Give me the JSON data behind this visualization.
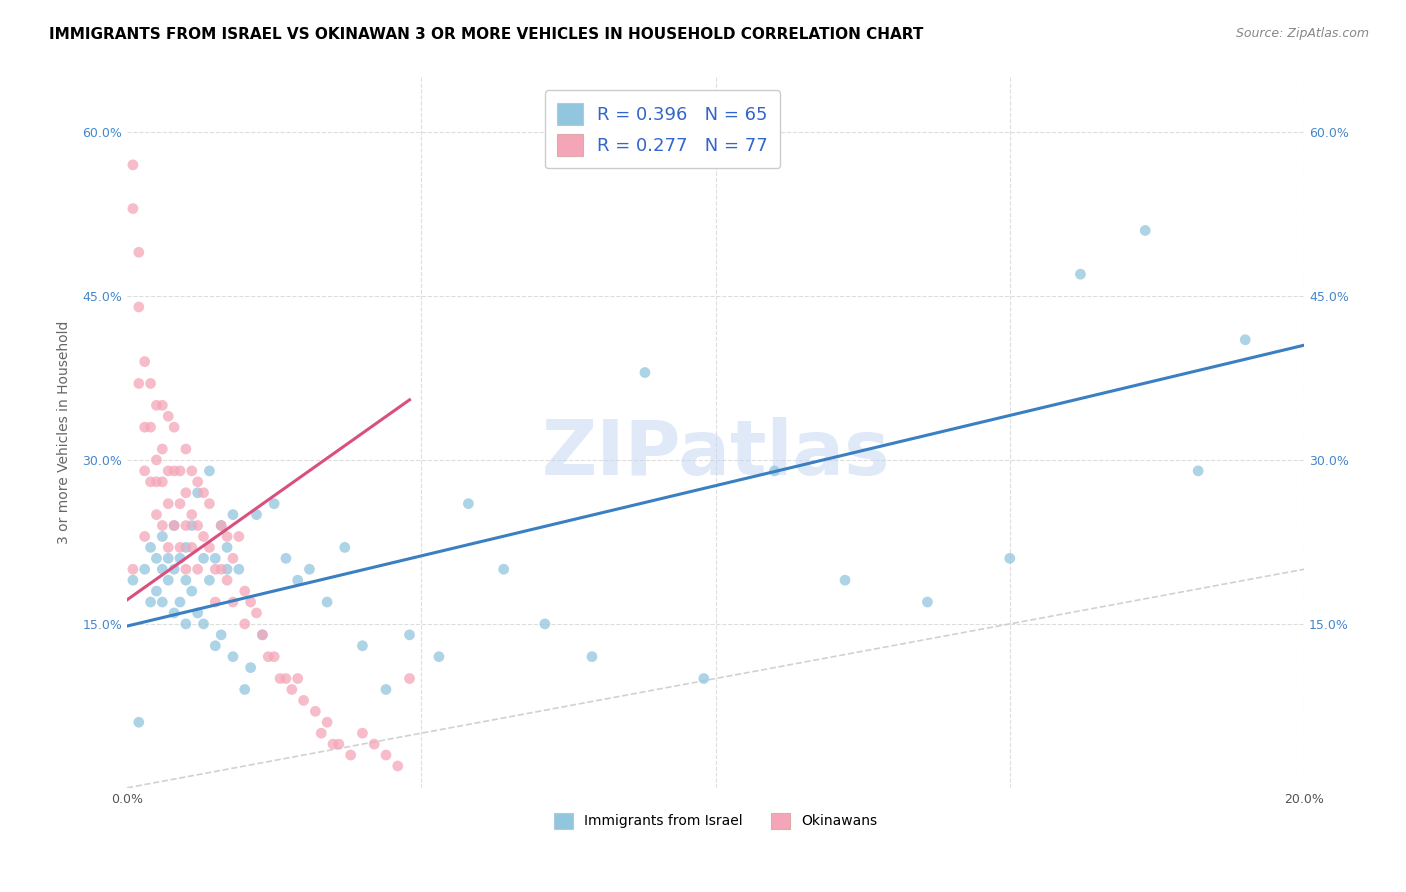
{
  "title": "IMMIGRANTS FROM ISRAEL VS OKINAWAN 3 OR MORE VEHICLES IN HOUSEHOLD CORRELATION CHART",
  "source": "Source: ZipAtlas.com",
  "ylabel": "3 or more Vehicles in Household",
  "xlim": [
    0.0,
    0.2
  ],
  "ylim": [
    0.0,
    0.65
  ],
  "xticks": [
    0.0,
    0.05,
    0.1,
    0.15,
    0.2
  ],
  "xtick_labels": [
    "0.0%",
    "",
    "",
    "",
    "20.0%"
  ],
  "yticks": [
    0.0,
    0.15,
    0.3,
    0.45,
    0.6
  ],
  "ytick_labels": [
    "",
    "15.0%",
    "30.0%",
    "45.0%",
    "60.0%"
  ],
  "R_blue": 0.396,
  "N_blue": 65,
  "R_pink": 0.277,
  "N_pink": 77,
  "blue_color": "#92c5de",
  "pink_color": "#f4a6b8",
  "blue_line_color": "#3a7fc1",
  "pink_line_color": "#d94f7e",
  "diag_line_color": "#cccccc",
  "grid_color": "#dddddd",
  "legend_text_color": "#3366cc",
  "watermark": "ZIPatlas",
  "blue_scatter_x": [
    0.001,
    0.002,
    0.003,
    0.004,
    0.004,
    0.005,
    0.005,
    0.006,
    0.006,
    0.006,
    0.007,
    0.007,
    0.008,
    0.008,
    0.008,
    0.009,
    0.009,
    0.01,
    0.01,
    0.01,
    0.011,
    0.011,
    0.012,
    0.012,
    0.013,
    0.013,
    0.014,
    0.014,
    0.015,
    0.015,
    0.016,
    0.016,
    0.017,
    0.017,
    0.018,
    0.018,
    0.019,
    0.02,
    0.021,
    0.022,
    0.023,
    0.025,
    0.027,
    0.029,
    0.031,
    0.034,
    0.037,
    0.04,
    0.044,
    0.048,
    0.053,
    0.058,
    0.064,
    0.071,
    0.079,
    0.088,
    0.098,
    0.11,
    0.122,
    0.136,
    0.15,
    0.162,
    0.173,
    0.182,
    0.19
  ],
  "blue_scatter_y": [
    0.19,
    0.06,
    0.2,
    0.17,
    0.22,
    0.18,
    0.21,
    0.17,
    0.2,
    0.23,
    0.19,
    0.21,
    0.16,
    0.2,
    0.24,
    0.17,
    0.21,
    0.15,
    0.19,
    0.22,
    0.18,
    0.24,
    0.16,
    0.27,
    0.15,
    0.21,
    0.19,
    0.29,
    0.13,
    0.21,
    0.14,
    0.24,
    0.2,
    0.22,
    0.12,
    0.25,
    0.2,
    0.09,
    0.11,
    0.25,
    0.14,
    0.26,
    0.21,
    0.19,
    0.2,
    0.17,
    0.22,
    0.13,
    0.09,
    0.14,
    0.12,
    0.26,
    0.2,
    0.15,
    0.12,
    0.38,
    0.1,
    0.29,
    0.19,
    0.17,
    0.21,
    0.47,
    0.51,
    0.29,
    0.41
  ],
  "pink_scatter_x": [
    0.001,
    0.001,
    0.001,
    0.002,
    0.002,
    0.002,
    0.003,
    0.003,
    0.003,
    0.003,
    0.004,
    0.004,
    0.004,
    0.005,
    0.005,
    0.005,
    0.005,
    0.006,
    0.006,
    0.006,
    0.006,
    0.007,
    0.007,
    0.007,
    0.007,
    0.008,
    0.008,
    0.008,
    0.009,
    0.009,
    0.009,
    0.01,
    0.01,
    0.01,
    0.01,
    0.011,
    0.011,
    0.011,
    0.012,
    0.012,
    0.012,
    0.013,
    0.013,
    0.014,
    0.014,
    0.015,
    0.015,
    0.016,
    0.016,
    0.017,
    0.017,
    0.018,
    0.018,
    0.019,
    0.02,
    0.02,
    0.021,
    0.022,
    0.023,
    0.024,
    0.025,
    0.026,
    0.027,
    0.028,
    0.029,
    0.03,
    0.032,
    0.033,
    0.034,
    0.035,
    0.036,
    0.038,
    0.04,
    0.042,
    0.044,
    0.046,
    0.048
  ],
  "pink_scatter_y": [
    0.57,
    0.53,
    0.2,
    0.49,
    0.44,
    0.37,
    0.39,
    0.33,
    0.29,
    0.23,
    0.37,
    0.33,
    0.28,
    0.35,
    0.3,
    0.28,
    0.25,
    0.35,
    0.31,
    0.28,
    0.24,
    0.34,
    0.29,
    0.26,
    0.22,
    0.33,
    0.29,
    0.24,
    0.29,
    0.26,
    0.22,
    0.31,
    0.27,
    0.24,
    0.2,
    0.29,
    0.25,
    0.22,
    0.28,
    0.24,
    0.2,
    0.27,
    0.23,
    0.26,
    0.22,
    0.2,
    0.17,
    0.24,
    0.2,
    0.23,
    0.19,
    0.21,
    0.17,
    0.23,
    0.18,
    0.15,
    0.17,
    0.16,
    0.14,
    0.12,
    0.12,
    0.1,
    0.1,
    0.09,
    0.1,
    0.08,
    0.07,
    0.05,
    0.06,
    0.04,
    0.04,
    0.03,
    0.05,
    0.04,
    0.03,
    0.02,
    0.1
  ],
  "blue_line_x": [
    0.0,
    0.2
  ],
  "blue_line_y": [
    0.148,
    0.405
  ],
  "pink_line_x": [
    0.0,
    0.048
  ],
  "pink_line_y": [
    0.172,
    0.355
  ]
}
